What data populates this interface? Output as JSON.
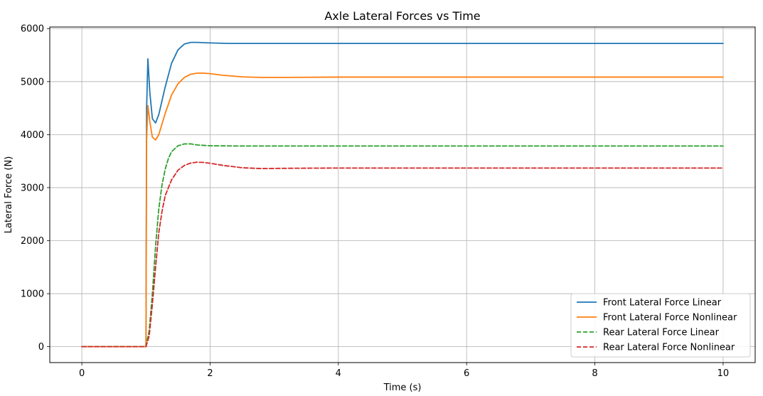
{
  "chart_data": {
    "type": "line",
    "title": "Axle Lateral Forces vs Time",
    "xlabel": "Time (s)",
    "ylabel": "Lateral Force (N)",
    "xlim": [
      -0.5,
      10.5
    ],
    "ylim": [
      -300,
      6030
    ],
    "xticks": [
      0,
      2,
      4,
      6,
      8,
      10
    ],
    "yticks": [
      0,
      1000,
      2000,
      3000,
      4000,
      5000,
      6000
    ],
    "grid": true,
    "legend_position": "lower-right",
    "series": [
      {
        "name": "Front Lateral Force Linear",
        "color": "#1f77b4",
        "style": "solid",
        "x": [
          0,
          1.0,
          1.01,
          1.03,
          1.06,
          1.1,
          1.15,
          1.2,
          1.3,
          1.4,
          1.5,
          1.6,
          1.7,
          1.8,
          2.0,
          2.3,
          3.0,
          4.0,
          6.0,
          8.0,
          10.0
        ],
        "y": [
          0,
          0,
          4500,
          5430,
          4800,
          4300,
          4220,
          4380,
          4900,
          5350,
          5600,
          5710,
          5740,
          5740,
          5730,
          5720,
          5720,
          5720,
          5720,
          5720,
          5720
        ]
      },
      {
        "name": "Front Lateral Force Nonlinear",
        "color": "#ff7f0e",
        "style": "solid",
        "x": [
          0,
          1.0,
          1.01,
          1.03,
          1.06,
          1.1,
          1.15,
          1.2,
          1.3,
          1.4,
          1.5,
          1.6,
          1.7,
          1.8,
          1.9,
          2.0,
          2.2,
          2.5,
          2.8,
          3.2,
          4.0,
          6.0,
          8.0,
          10.0
        ],
        "y": [
          0,
          0,
          3900,
          4550,
          4250,
          3950,
          3900,
          4000,
          4400,
          4750,
          4960,
          5080,
          5140,
          5160,
          5160,
          5150,
          5120,
          5090,
          5080,
          5080,
          5085,
          5085,
          5085,
          5085
        ]
      },
      {
        "name": "Rear Lateral Force Linear",
        "color": "#2ca02c",
        "style": "dashed",
        "x": [
          0,
          1.0,
          1.05,
          1.1,
          1.15,
          1.2,
          1.25,
          1.3,
          1.35,
          1.4,
          1.5,
          1.6,
          1.7,
          1.8,
          2.0,
          2.5,
          3.0,
          4.0,
          6.0,
          8.0,
          10.0
        ],
        "y": [
          0,
          0,
          300,
          1000,
          1900,
          2600,
          3050,
          3350,
          3550,
          3680,
          3790,
          3825,
          3825,
          3805,
          3790,
          3785,
          3785,
          3785,
          3785,
          3785,
          3785
        ]
      },
      {
        "name": "Rear Lateral Force Nonlinear",
        "color": "#d62728",
        "style": "dashed",
        "x": [
          0,
          1.0,
          1.05,
          1.1,
          1.15,
          1.2,
          1.25,
          1.3,
          1.4,
          1.5,
          1.6,
          1.7,
          1.8,
          1.9,
          2.0,
          2.2,
          2.5,
          2.8,
          3.2,
          4.0,
          6.0,
          8.0,
          10.0
        ],
        "y": [
          0,
          0,
          200,
          800,
          1500,
          2150,
          2550,
          2850,
          3150,
          3330,
          3420,
          3465,
          3480,
          3475,
          3460,
          3420,
          3375,
          3360,
          3365,
          3370,
          3370,
          3370,
          3370
        ]
      }
    ]
  }
}
